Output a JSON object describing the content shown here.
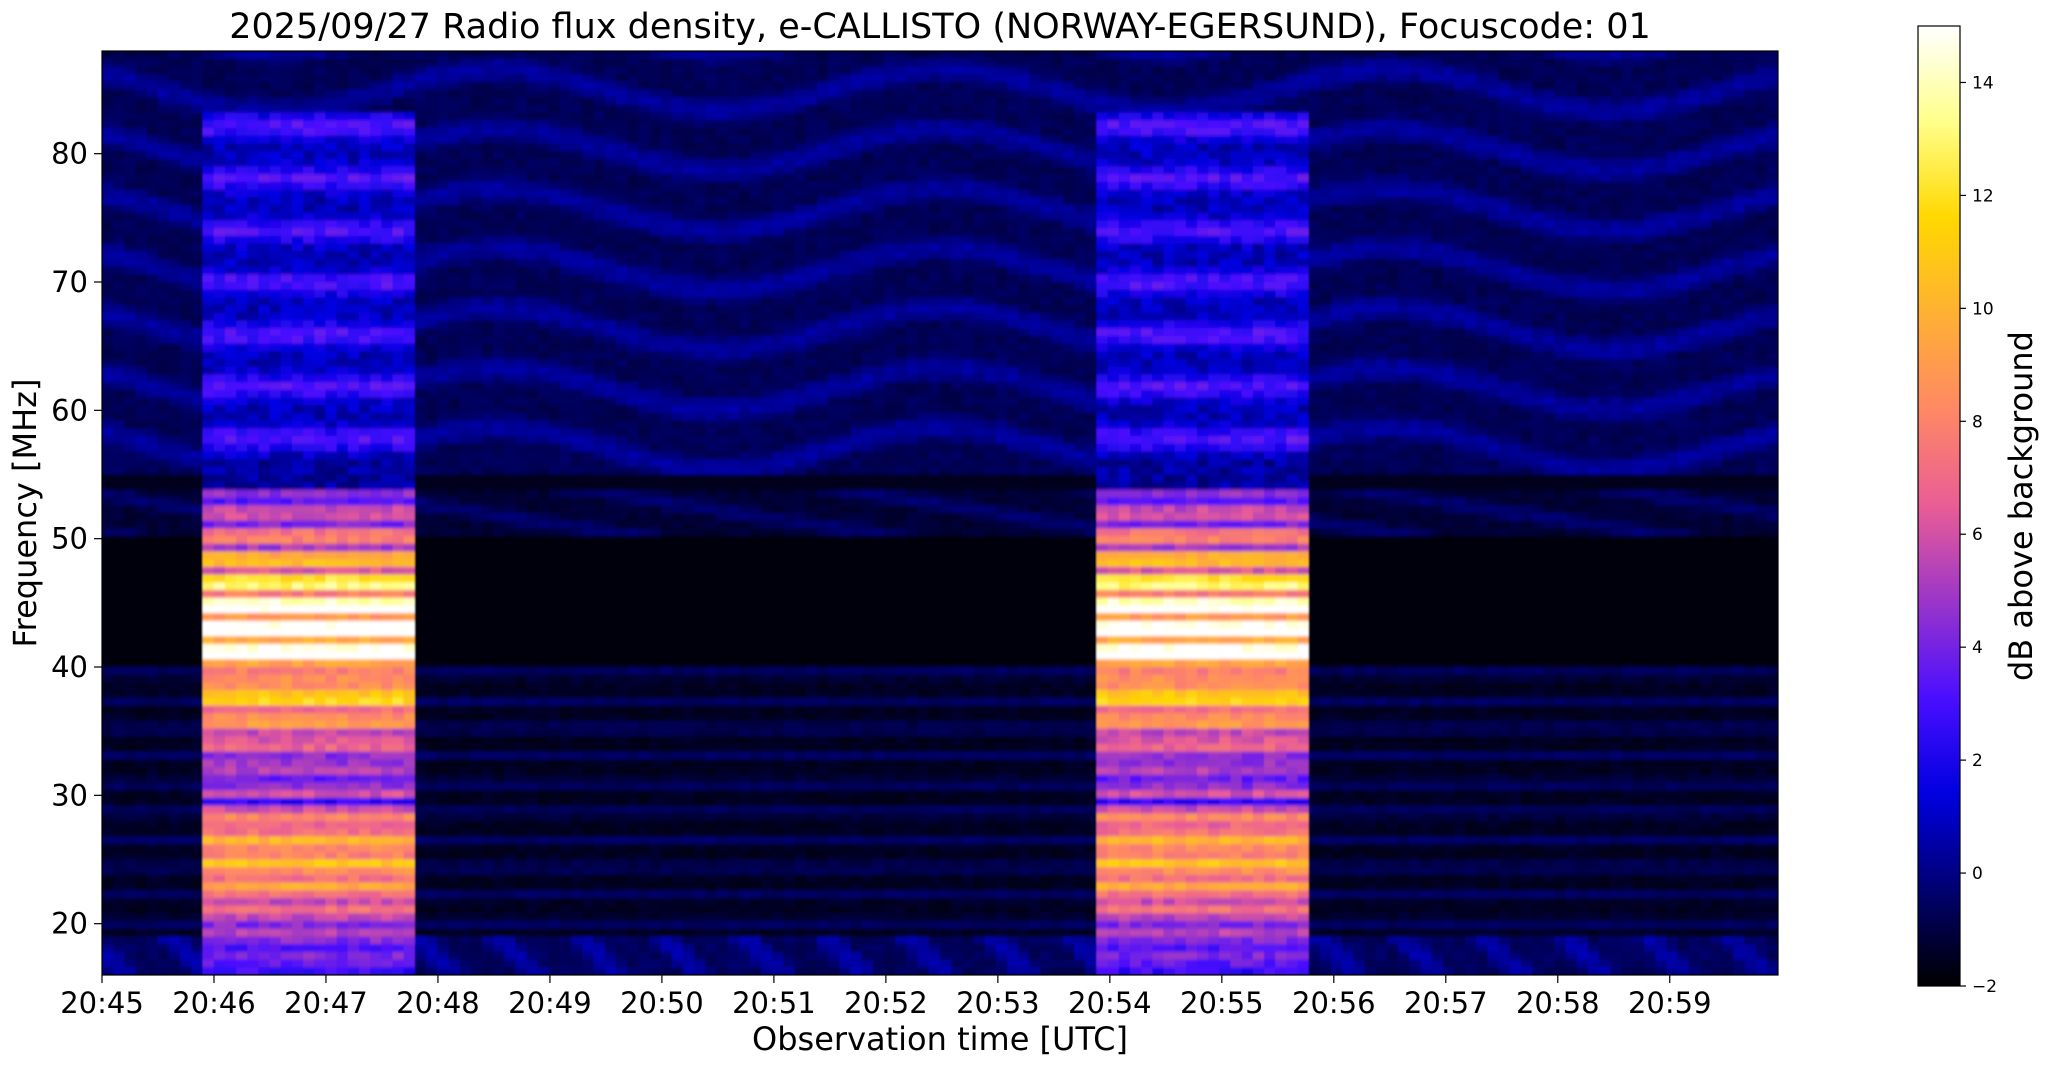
{
  "chart_data": {
    "type": "heatmap",
    "title": "2025/09/27  Radio flux density, e-CALLISTO (NORWAY-EGERSUND), Focuscode: 01",
    "xlabel": "Observation time [UTC]",
    "ylabel": "Frequency [MHz]",
    "x_tick_labels": [
      "20:45",
      "20:46",
      "20:47",
      "20:48",
      "20:49",
      "20:50",
      "20:51",
      "20:52",
      "20:53",
      "20:54",
      "20:55",
      "20:56",
      "20:57",
      "20:58",
      "20:59"
    ],
    "x_range": [
      "20:45:00",
      "20:59:58"
    ],
    "y_ticks": [
      20,
      30,
      40,
      50,
      60,
      70,
      80
    ],
    "ylim": [
      16,
      88
    ],
    "colorbar": {
      "label": "dB above background",
      "ticks": [
        -2,
        0,
        2,
        4,
        6,
        8,
        10,
        12,
        14
      ],
      "range": [
        -2,
        15
      ],
      "colormap": "gnuplot2",
      "colors": [
        "#000000",
        "#000070",
        "#0000e0",
        "#4a0eff",
        "#9a35ca",
        "#e95d96",
        "#ff8865",
        "#ffb033",
        "#ffd800",
        "#ffff8a",
        "#ffffff"
      ]
    },
    "features": [
      {
        "name": "broadband burst",
        "start": "20:45:55",
        "end": "20:47:45",
        "freq_range": [
          16,
          83
        ],
        "peak_db": 15,
        "peak_freq": 42.5
      },
      {
        "name": "broadband burst",
        "start": "20:53:55",
        "end": "20:55:45",
        "freq_range": [
          16,
          83
        ],
        "peak_db": 15,
        "peak_freq": 42.5
      }
    ],
    "grid": false
  }
}
